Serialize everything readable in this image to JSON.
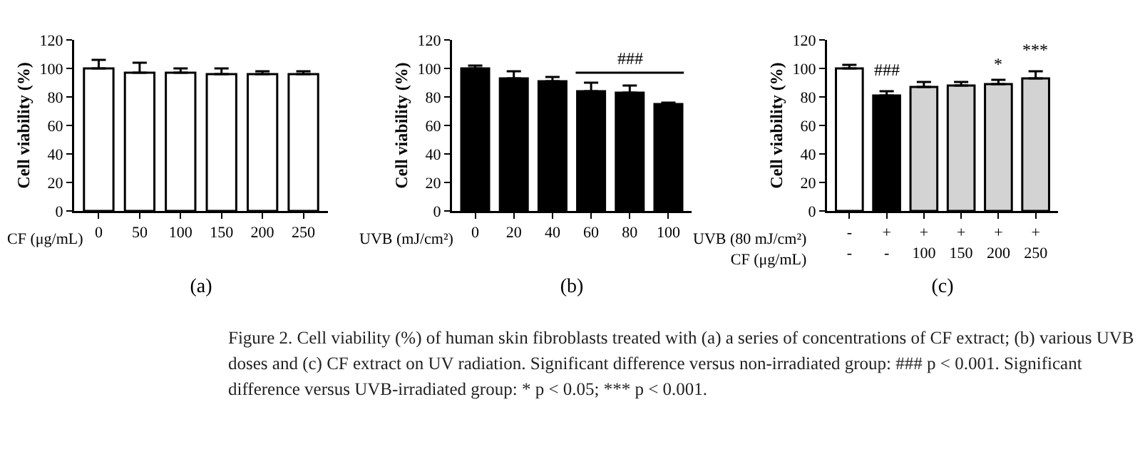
{
  "chart_data": [
    {
      "type": "bar",
      "title": "(a)",
      "xlabel": "CF (μg/mL)",
      "ylabel": "Cell viability (%)",
      "categories": [
        "0",
        "50",
        "100",
        "150",
        "200",
        "250"
      ],
      "values": [
        100,
        97,
        97,
        96,
        96,
        96
      ],
      "errors": [
        6,
        7,
        3,
        4,
        2,
        2
      ],
      "color": "#ffffff",
      "ylim": [
        0,
        120
      ],
      "yticks": [
        0,
        20,
        40,
        60,
        80,
        100,
        120
      ],
      "grid": false,
      "annotations": [
        "Figure 2. Cell viability (%) of human skin fibroblasts treated with (a) a series of concentrations of CF extract; (b) various UVB doses and (c) CF extract on UV radiation. Significant difference versus non-irradiated group: ### p < 0.001. Significant difference versus UVB-irradiated group: * p < 0.05; *** p < 0.001."
      ]
    },
    {
      "type": "bar",
      "title": "(b)",
      "xlabel": "UVB (mJ/cm²)",
      "ylabel": "Cell viability (%)",
      "categories": [
        "0",
        "20",
        "40",
        "60",
        "80",
        "100"
      ],
      "values": [
        100,
        93,
        91,
        84,
        83,
        75
      ],
      "errors": [
        2,
        5,
        3,
        6,
        5,
        1
      ],
      "color": "#000000",
      "ylim": [
        0,
        120
      ],
      "yticks": [
        0,
        20,
        40,
        60,
        80,
        100,
        120
      ],
      "grid": false,
      "annotations": [
        "###"
      ]
    },
    {
      "type": "bar",
      "title": "(c)",
      "xlabel": "UVB (80 mJ/cm²)\nCF (μg/mL)",
      "ylabel": "Cell viability (%)",
      "categories": [
        "-\n-",
        "+\n-",
        "+\n100",
        "+\n150",
        "+\n200",
        "+\n250"
      ],
      "values": [
        100,
        81,
        87,
        88,
        89,
        93
      ],
      "errors": [
        2.5,
        3,
        3.5,
        2.5,
        3,
        5
      ],
      "colors": [
        "#ffffff",
        "#000000",
        "#d3d3d3",
        "#d3d3d3",
        "#d3d3d3",
        "#d3d3d3"
      ],
      "ylim": [
        0,
        120
      ],
      "yticks": [
        0,
        20,
        40,
        60,
        80,
        100,
        120
      ],
      "grid": false,
      "annotations": [
        {
          "text": "###",
          "x": "+\n-",
          "y": 84
        },
        {
          "text": "*",
          "x": "+\n200",
          "y": 92
        },
        {
          "text": "***",
          "x": "+\n250",
          "y": 98
        }
      ]
    }
  ]
}
